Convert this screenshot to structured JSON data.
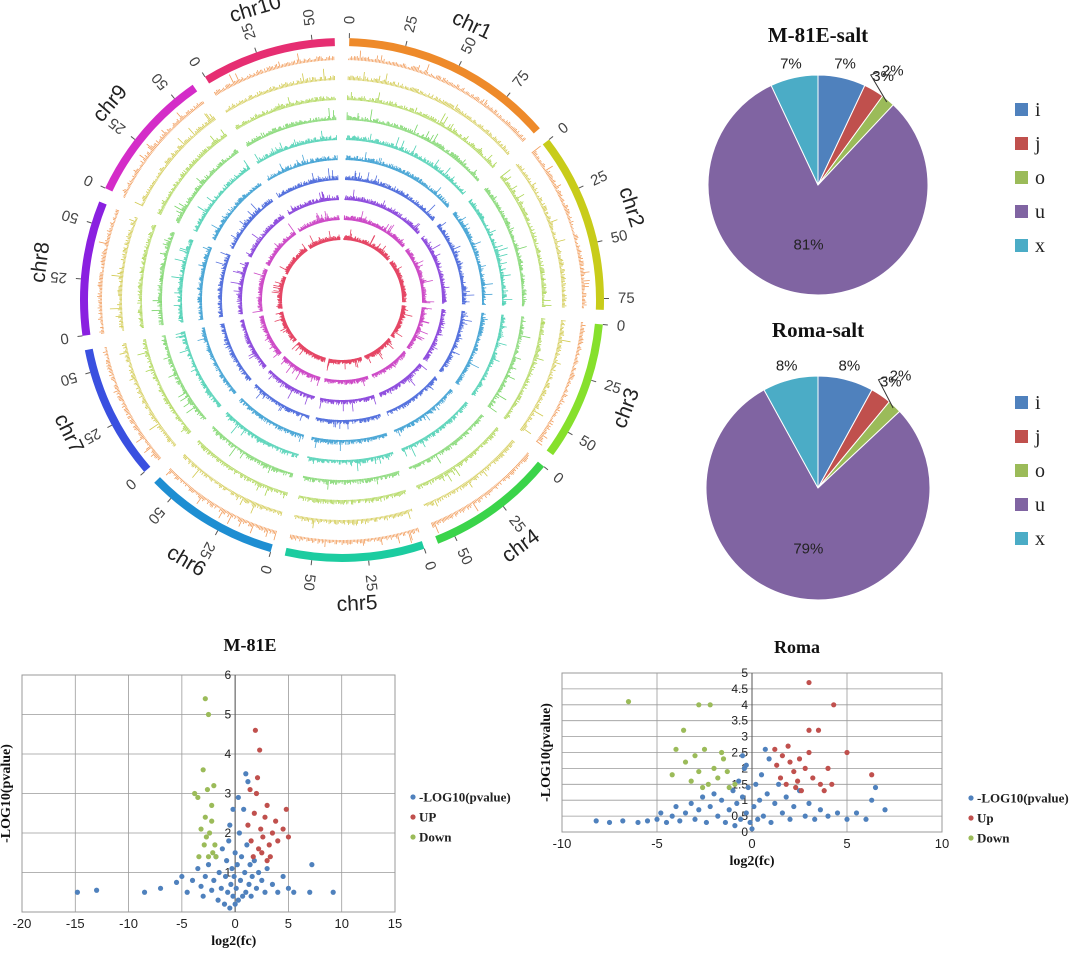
{
  "circos": {
    "chromosomes": [
      {
        "name": "chr1",
        "length": 95,
        "color": "#ee8a2a",
        "ticks": [
          0,
          25,
          50,
          75
        ]
      },
      {
        "name": "chr2",
        "length": 80,
        "color": "#c8cc1a",
        "ticks": [
          0,
          25,
          50,
          75
        ]
      },
      {
        "name": "chr3",
        "length": 62,
        "color": "#86e02c",
        "ticks": [
          0,
          25,
          50
        ]
      },
      {
        "name": "chr4",
        "length": 58,
        "color": "#3ad44a",
        "ticks": [
          0,
          25,
          50
        ]
      },
      {
        "name": "chr5",
        "length": 62,
        "color": "#1ccca0",
        "ticks": [
          0,
          25,
          50
        ]
      },
      {
        "name": "chr6",
        "length": 60,
        "color": "#1e8ed2",
        "ticks": [
          0,
          25,
          50
        ]
      },
      {
        "name": "chr7",
        "length": 60,
        "color": "#3a50e0",
        "ticks": [
          0,
          25,
          50
        ]
      },
      {
        "name": "chr8",
        "length": 60,
        "color": "#8a20e0",
        "ticks": [
          0,
          25,
          50
        ]
      },
      {
        "name": "chr9",
        "length": 60,
        "color": "#d42cc8",
        "ticks": [
          0,
          25,
          50
        ]
      },
      {
        "name": "chr10",
        "length": 60,
        "color": "#e62e72",
        "ticks": [
          0,
          25,
          50
        ]
      }
    ],
    "track_colors": [
      "#ee8a3c",
      "#c9bf2e",
      "#9acd2e",
      "#5fcc4a",
      "#2cc8a6",
      "#2a96cf",
      "#3a5ad8",
      "#7d30d8",
      "#c42cbd",
      "#e0264a"
    ]
  },
  "chart_data": [
    {
      "type": "pie",
      "title": "M-81E-salt",
      "categories": [
        "i",
        "j",
        "o",
        "u",
        "x"
      ],
      "values": [
        7,
        3,
        2,
        81,
        7
      ],
      "labels": [
        "7%",
        "3%",
        "2%",
        "81%",
        "7%"
      ],
      "colors": [
        "#4f81bd",
        "#c0504d",
        "#9bbb59",
        "#8064a2",
        "#4bacc6"
      ],
      "legend": "right"
    },
    {
      "type": "pie",
      "title": "Roma-salt",
      "categories": [
        "i",
        "j",
        "o",
        "u",
        "x"
      ],
      "values": [
        8,
        3,
        2,
        79,
        8
      ],
      "labels": [
        "8%",
        "3%",
        "2%",
        "79%",
        "8%"
      ],
      "colors": [
        "#4f81bd",
        "#c0504d",
        "#9bbb59",
        "#8064a2",
        "#4bacc6"
      ],
      "legend": "right"
    },
    {
      "type": "scatter",
      "title": "M-81E",
      "xlabel": "log2(fc)",
      "ylabel": "-LOG10(pvalue)",
      "xlim": [
        -20,
        15
      ],
      "ylim": [
        0,
        6
      ],
      "xticks": [
        -20,
        -15,
        -10,
        -5,
        0,
        5,
        10,
        15
      ],
      "yticks": [
        1,
        2,
        3,
        4,
        5,
        6
      ],
      "grid": true,
      "legend": "right",
      "series": [
        {
          "name": "-LOG10(pvalue)",
          "color": "#4f81bd",
          "points": [
            [
              -14.8,
              0.5
            ],
            [
              -13,
              0.55
            ],
            [
              -8.5,
              0.5
            ],
            [
              -7,
              0.6
            ],
            [
              -5.5,
              0.75
            ],
            [
              -5,
              0.9
            ],
            [
              -4.5,
              0.5
            ],
            [
              -4,
              0.8
            ],
            [
              -3.5,
              1.1
            ],
            [
              -3.2,
              0.65
            ],
            [
              -3,
              0.4
            ],
            [
              -2.8,
              0.9
            ],
            [
              -2.5,
              1.2
            ],
            [
              -2.2,
              0.55
            ],
            [
              -2,
              0.8
            ],
            [
              -1.8,
              1.4
            ],
            [
              -1.6,
              0.3
            ],
            [
              -1.5,
              1
            ],
            [
              -1.3,
              0.6
            ],
            [
              -1.2,
              1.6
            ],
            [
              -1,
              0.2
            ],
            [
              -0.9,
              0.9
            ],
            [
              -0.8,
              1.3
            ],
            [
              -0.7,
              0.5
            ],
            [
              -0.6,
              1.8
            ],
            [
              -0.5,
              0.1
            ],
            [
              -0.4,
              0.7
            ],
            [
              -0.3,
              1.1
            ],
            [
              -0.2,
              0.4
            ],
            [
              -0.1,
              0.9
            ],
            [
              0,
              0.2
            ],
            [
              0,
              1.5
            ],
            [
              0.1,
              0.6
            ],
            [
              0.2,
              1.2
            ],
            [
              0.3,
              0.3
            ],
            [
              0.4,
              2
            ],
            [
              0.5,
              0.8
            ],
            [
              0.6,
              1.4
            ],
            [
              0.7,
              0.4
            ],
            [
              0.8,
              2.6
            ],
            [
              0.9,
              1
            ],
            [
              1,
              0.5
            ],
            [
              1.1,
              1.7
            ],
            [
              1.2,
              3.3
            ],
            [
              1.3,
              0.7
            ],
            [
              1.4,
              1.2
            ],
            [
              1.5,
              0.4
            ],
            [
              1.6,
              0.9
            ],
            [
              1.8,
              1.3
            ],
            [
              2,
              0.6
            ],
            [
              2.2,
              1
            ],
            [
              2.5,
              0.8
            ],
            [
              2.8,
              0.5
            ],
            [
              3,
              1.1
            ],
            [
              3.5,
              0.7
            ],
            [
              4,
              0.5
            ],
            [
              4.5,
              0.9
            ],
            [
              5,
              0.6
            ],
            [
              5.5,
              0.5
            ],
            [
              7.2,
              1.2
            ],
            [
              7,
              0.5
            ],
            [
              9.2,
              0.5
            ],
            [
              -0.5,
              2.2
            ],
            [
              0.3,
              2.9
            ],
            [
              1,
              3.5
            ],
            [
              -0.2,
              2.6
            ]
          ]
        },
        {
          "name": "UP",
          "color": "#c0504d",
          "points": [
            [
              1.2,
              2.2
            ],
            [
              1.5,
              1.8
            ],
            [
              1.8,
              2.5
            ],
            [
              2,
              3
            ],
            [
              2.2,
              1.6
            ],
            [
              2.4,
              2.1
            ],
            [
              2.6,
              1.9
            ],
            [
              2.8,
              2.4
            ],
            [
              3,
              2.7
            ],
            [
              3.2,
              1.7
            ],
            [
              3.5,
              2
            ],
            [
              3.8,
              2.3
            ],
            [
              4,
              1.8
            ],
            [
              4.5,
              2.1
            ],
            [
              5,
              1.9
            ],
            [
              2.5,
              1.5
            ],
            [
              3.3,
              1.4
            ],
            [
              1.7,
              1.4
            ],
            [
              1.9,
              4.6
            ],
            [
              2.3,
              4.1
            ],
            [
              1.4,
              3.1
            ],
            [
              2.1,
              3.4
            ],
            [
              4.8,
              2.6
            ],
            [
              3,
              1.3
            ]
          ]
        },
        {
          "name": "Down",
          "color": "#9bbb59",
          "points": [
            [
              -2.8,
              5.4
            ],
            [
              -2.5,
              5
            ],
            [
              -3,
              3.6
            ],
            [
              -3.5,
              2.9
            ],
            [
              -2.6,
              3.1
            ],
            [
              -2.2,
              2.7
            ],
            [
              -2.8,
              2.4
            ],
            [
              -2.4,
              2
            ],
            [
              -2.9,
              1.7
            ],
            [
              -2.1,
              1.5
            ],
            [
              -3.2,
              2.1
            ],
            [
              -2.5,
              1.4
            ],
            [
              -1.9,
              1.7
            ],
            [
              -2.2,
              2.3
            ],
            [
              -3.4,
              1.4
            ],
            [
              -2.7,
              1.9
            ],
            [
              -1.8,
              1.4
            ],
            [
              -3.8,
              3
            ],
            [
              -2,
              3.2
            ]
          ]
        }
      ]
    },
    {
      "type": "scatter",
      "title": "Roma",
      "xlabel": "log2(fc)",
      "ylabel": "-LOG10(pvalue)",
      "xlim": [
        -10,
        10
      ],
      "ylim": [
        0,
        5
      ],
      "xticks": [
        -10,
        -5,
        0,
        5,
        10
      ],
      "yticks": [
        0,
        0.5,
        1,
        1.5,
        2,
        2.5,
        3,
        3.5,
        4,
        4.5,
        5
      ],
      "grid": true,
      "legend": "right",
      "series": [
        {
          "name": "-LOG10(pvalue)",
          "color": "#4f81bd",
          "points": [
            [
              -8.2,
              0.35
            ],
            [
              -7.5,
              0.3
            ],
            [
              -6.8,
              0.35
            ],
            [
              -6,
              0.3
            ],
            [
              -5.5,
              0.35
            ],
            [
              -5,
              0.4
            ],
            [
              -4.8,
              0.6
            ],
            [
              -4.5,
              0.3
            ],
            [
              -4.2,
              0.5
            ],
            [
              -4,
              0.8
            ],
            [
              -3.8,
              0.35
            ],
            [
              -3.5,
              0.6
            ],
            [
              -3.2,
              0.9
            ],
            [
              -3,
              0.4
            ],
            [
              -2.8,
              0.7
            ],
            [
              -2.6,
              1.1
            ],
            [
              -2.4,
              0.3
            ],
            [
              -2.2,
              0.8
            ],
            [
              -2,
              1.2
            ],
            [
              -1.8,
              0.5
            ],
            [
              -1.6,
              1
            ],
            [
              -1.4,
              0.3
            ],
            [
              -1.2,
              0.7
            ],
            [
              -1,
              1.3
            ],
            [
              -0.9,
              0.2
            ],
            [
              -0.8,
              0.9
            ],
            [
              -0.7,
              1.6
            ],
            [
              -0.6,
              0.4
            ],
            [
              -0.5,
              1.1
            ],
            [
              -0.4,
              2
            ],
            [
              -0.3,
              0.6
            ],
            [
              -0.2,
              1.4
            ],
            [
              -0.1,
              0.3
            ],
            [
              0,
              0.1
            ],
            [
              0.1,
              0.8
            ],
            [
              0.2,
              1.5
            ],
            [
              0.3,
              0.4
            ],
            [
              0.4,
              1
            ],
            [
              0.5,
              1.8
            ],
            [
              0.6,
              0.5
            ],
            [
              0.8,
              1.2
            ],
            [
              1,
              0.3
            ],
            [
              1.2,
              0.9
            ],
            [
              1.4,
              1.5
            ],
            [
              1.6,
              0.6
            ],
            [
              1.8,
              1.1
            ],
            [
              2,
              0.4
            ],
            [
              2.2,
              0.8
            ],
            [
              2.5,
              1.3
            ],
            [
              2.8,
              0.5
            ],
            [
              3,
              0.9
            ],
            [
              3.3,
              0.4
            ],
            [
              3.6,
              0.7
            ],
            [
              4,
              0.5
            ],
            [
              4.5,
              0.6
            ],
            [
              5,
              0.4
            ],
            [
              5.5,
              0.6
            ],
            [
              6,
              0.4
            ],
            [
              6.3,
              1
            ],
            [
              6.5,
              1.4
            ],
            [
              7,
              0.7
            ],
            [
              -0.5,
              2.4
            ],
            [
              0.7,
              2.6
            ],
            [
              -0.3,
              2.1
            ],
            [
              0.9,
              2.3
            ]
          ]
        },
        {
          "name": "Up",
          "color": "#c0504d",
          "points": [
            [
              3,
              4.7
            ],
            [
              4.3,
              4
            ],
            [
              3.5,
              3.2
            ],
            [
              3,
              3.2
            ],
            [
              5,
              2.5
            ],
            [
              6.3,
              1.8
            ],
            [
              1.2,
              2.6
            ],
            [
              1.6,
              2.4
            ],
            [
              2,
              2.2
            ],
            [
              2.2,
              1.9
            ],
            [
              1.5,
              1.7
            ],
            [
              1.8,
              1.5
            ],
            [
              2.5,
              2.3
            ],
            [
              2.8,
              2
            ],
            [
              3.2,
              1.7
            ],
            [
              3.6,
              1.5
            ],
            [
              4.2,
              1.5
            ],
            [
              2.4,
              1.6
            ],
            [
              1.3,
              2.1
            ],
            [
              3,
              2.5
            ],
            [
              2.6,
              1.3
            ],
            [
              4,
              2
            ],
            [
              1.9,
              2.7
            ],
            [
              2.3,
              1.4
            ],
            [
              3.8,
              1.3
            ]
          ]
        },
        {
          "name": "Down",
          "color": "#9bbb59",
          "points": [
            [
              -6.5,
              4.1
            ],
            [
              -2.8,
              4
            ],
            [
              -2.2,
              4
            ],
            [
              -2.5,
              2.6
            ],
            [
              -3,
              2.4
            ],
            [
              -3.5,
              2.2
            ],
            [
              -2,
              2
            ],
            [
              -1.5,
              2.3
            ],
            [
              -2.8,
              1.9
            ],
            [
              -1.8,
              1.7
            ],
            [
              -2.3,
              1.5
            ],
            [
              -1.2,
              1.4
            ],
            [
              -3.2,
              1.6
            ],
            [
              -4,
              2.6
            ],
            [
              -3.6,
              3.2
            ],
            [
              -2.6,
              1.4
            ],
            [
              -1.6,
              2.5
            ],
            [
              -4.2,
              1.8
            ],
            [
              -0.9,
              1.5
            ],
            [
              -1.3,
              1.9
            ]
          ]
        }
      ]
    }
  ]
}
